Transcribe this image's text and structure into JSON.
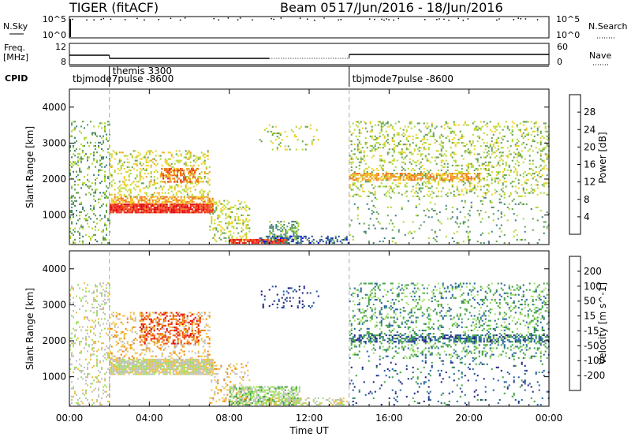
{
  "header": {
    "radar": "TIGER (fitACF)",
    "beam": "Beam 05",
    "dates": "17/Jun/2016 - 18/Jun/2016"
  },
  "status_panel": {
    "nsky_label": "N.Sky",
    "nsearch_label": "N.Search",
    "freq_label": "Freq.",
    "freq_unit": "[MHz]",
    "nave_label": "Nave",
    "cpid_label": "CPID",
    "left_ticks_top": [
      "10^5",
      "10^0"
    ],
    "right_ticks_top": [
      "10^5",
      "10^0"
    ],
    "left_ticks_freq": [
      "12",
      "8"
    ],
    "right_ticks_nave": [
      "60",
      "0"
    ],
    "cpid_segments": [
      {
        "label": "tbjmode7pulse -8600",
        "start_h": 0.0
      },
      {
        "label": "themis 3300",
        "start_h": 2.0
      },
      {
        "label": "tbjmode7pulse -8600",
        "start_h": 14.0
      }
    ]
  },
  "chart_data": [
    {
      "type": "heatmap",
      "panel": "power",
      "ylabel": "Slant Range [km]",
      "xlabel": "Time UT",
      "x_range_hours": [
        0,
        24
      ],
      "y_range_km": [
        180,
        4500
      ],
      "yticks": [
        1000,
        2000,
        3000,
        4000
      ],
      "colorbar_label": "Power [dB]",
      "colorbar_ticks": [
        "4",
        "8",
        "12",
        "16",
        "20",
        "24",
        "28"
      ],
      "colorbar_range": [
        0,
        30
      ],
      "colors": [
        "#0000ff",
        "#1f3f9f",
        "#3f7f7f",
        "#5fa04f",
        "#b0d830",
        "#f0d020",
        "#f0a020",
        "#f07020",
        "#f03020",
        "#e00000"
      ],
      "regions": [
        {
          "t0": 2.0,
          "t1": 7.2,
          "r0": 1050,
          "r1": 1300,
          "level": 26,
          "density": 0.95
        },
        {
          "t0": 2.0,
          "t1": 7.2,
          "r0": 1300,
          "r1": 1500,
          "level": 20,
          "density": 0.6
        },
        {
          "t0": 2.0,
          "t1": 7.0,
          "r0": 1500,
          "r1": 2800,
          "level": 15,
          "density": 0.25
        },
        {
          "t0": 4.5,
          "t1": 6.5,
          "r0": 1900,
          "r1": 2300,
          "level": 22,
          "density": 0.45
        },
        {
          "t0": 7.0,
          "t1": 9.0,
          "r0": 250,
          "r1": 1400,
          "level": 14,
          "density": 0.25
        },
        {
          "t0": 8.0,
          "t1": 11.0,
          "r0": 200,
          "r1": 330,
          "level": 26,
          "density": 0.9
        },
        {
          "t0": 10.0,
          "t1": 11.5,
          "r0": 300,
          "r1": 800,
          "level": 10,
          "density": 0.45
        },
        {
          "t0": 9.5,
          "t1": 14.0,
          "r0": 200,
          "r1": 400,
          "level": 6,
          "density": 0.35
        },
        {
          "t0": 9.5,
          "t1": 12.5,
          "r0": 2800,
          "r1": 3500,
          "level": 13,
          "density": 0.1
        },
        {
          "t0": 0.0,
          "t1": 2.0,
          "r0": 200,
          "r1": 3600,
          "level": 11,
          "density": 0.18
        },
        {
          "t0": 14.0,
          "t1": 24.0,
          "r0": 1500,
          "r1": 3600,
          "level": 13,
          "density": 0.2
        },
        {
          "t0": 14.0,
          "t1": 20.5,
          "r0": 1950,
          "r1": 2150,
          "level": 20,
          "density": 0.6
        },
        {
          "t0": 14.0,
          "t1": 24.0,
          "r0": 200,
          "r1": 1500,
          "level": 10,
          "density": 0.06
        }
      ]
    },
    {
      "type": "heatmap",
      "panel": "velocity",
      "ylabel": "Slant Range [km]",
      "xlabel": "Time UT",
      "x_range_hours": [
        0,
        24
      ],
      "y_range_km": [
        180,
        4500
      ],
      "yticks": [
        1000,
        2000,
        3000,
        4000
      ],
      "xticks": [
        "00:00",
        "04:00",
        "08:00",
        "12:00",
        "16:00",
        "20:00",
        "00:00"
      ],
      "colorbar_label": "Velocity [m s^-1]",
      "colorbar_ticks": [
        "-200",
        "-100",
        "-50",
        "-15",
        "15",
        "50",
        "100",
        "200"
      ],
      "colors": [
        "#e00000",
        "#f04010",
        "#f08000",
        "#f0c040",
        "#c0c0c0",
        "#a0e060",
        "#40a040",
        "#2060a0",
        "#202080"
      ],
      "regions": [
        {
          "t0": 2.0,
          "t1": 7.2,
          "r0": 1050,
          "r1": 1500,
          "level": 4,
          "density": 0.9
        },
        {
          "t0": 2.0,
          "t1": 7.0,
          "r0": 1500,
          "r1": 2800,
          "level": 3,
          "density": 0.25
        },
        {
          "t0": 3.5,
          "t1": 6.5,
          "r0": 1900,
          "r1": 2800,
          "level": 1,
          "density": 0.3
        },
        {
          "t0": 7.0,
          "t1": 9.0,
          "r0": 250,
          "r1": 1400,
          "level": 3,
          "density": 0.2
        },
        {
          "t0": 8.0,
          "t1": 11.5,
          "r0": 200,
          "r1": 700,
          "level": 5,
          "density": 0.6
        },
        {
          "t0": 9.5,
          "t1": 14.0,
          "r0": 200,
          "r1": 400,
          "level": 4,
          "density": 0.35
        },
        {
          "t0": 9.5,
          "t1": 12.5,
          "r0": 2900,
          "r1": 3500,
          "level": 8,
          "density": 0.1
        },
        {
          "t0": 0.0,
          "t1": 2.0,
          "r0": 200,
          "r1": 3600,
          "level": 4,
          "density": 0.18
        },
        {
          "t0": 14.0,
          "t1": 24.0,
          "r0": 1500,
          "r1": 3600,
          "level": 6,
          "density": 0.2
        },
        {
          "t0": 14.0,
          "t1": 24.0,
          "r0": 1950,
          "r1": 2150,
          "level": 7,
          "density": 0.5
        },
        {
          "t0": 14.0,
          "t1": 24.0,
          "r0": 200,
          "r1": 1500,
          "level": 7,
          "density": 0.06
        }
      ]
    }
  ]
}
